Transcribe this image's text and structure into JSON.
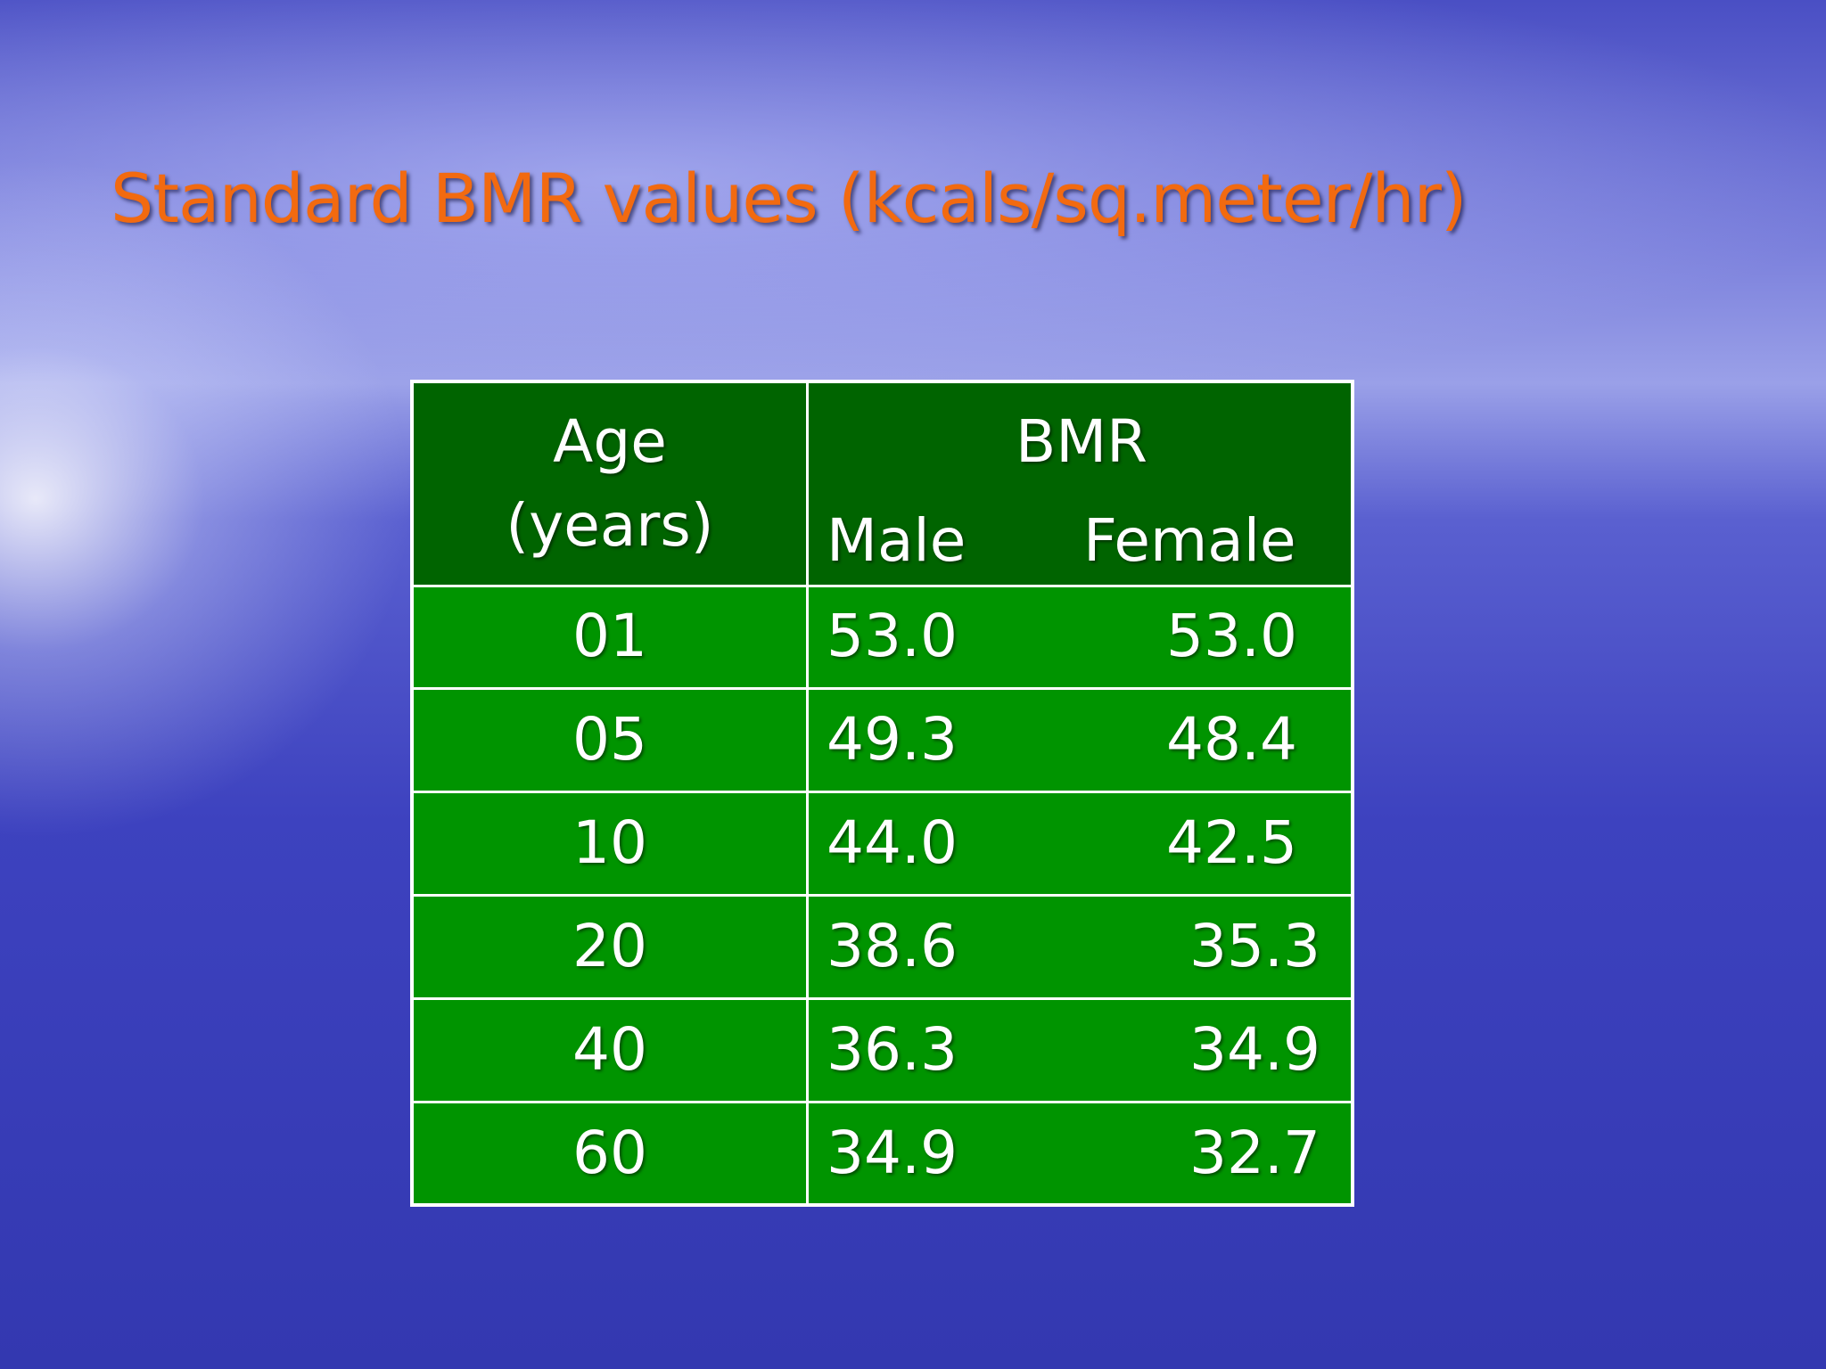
{
  "title": "Standard BMR values (kcals/sq.meter/hr)",
  "table": {
    "header": {
      "age": [
        "Age",
        "(years)"
      ],
      "bmr": "BMR",
      "male": "Male",
      "female": "Female"
    },
    "rows": [
      [
        "01",
        "53.0",
        "53.0"
      ],
      [
        "05",
        "49.3",
        "48.4"
      ],
      [
        "10",
        "44.0",
        "42.5"
      ],
      [
        "20",
        "38.6",
        "35.3"
      ],
      [
        "40",
        "36.3",
        "34.9"
      ],
      [
        "60",
        "34.9",
        "32.7"
      ]
    ]
  }
}
